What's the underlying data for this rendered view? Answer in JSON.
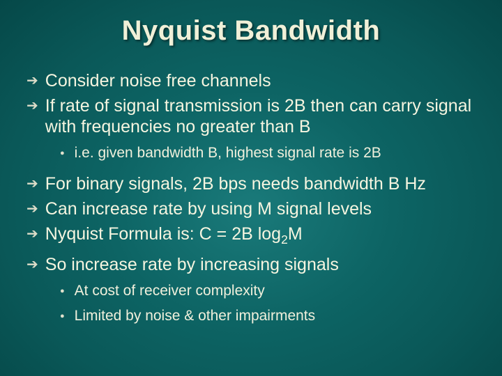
{
  "title": "Nyquist Bandwidth",
  "bullets_a": [
    "Consider noise free channels",
    "If rate of signal transmission is 2B then can carry signal with frequencies no greater than B"
  ],
  "sub_a": [
    "i.e. given bandwidth B, highest signal rate is 2B"
  ],
  "bullets_b": [
    "For binary signals, 2B bps needs bandwidth B Hz",
    "Can increase rate by using M signal levels",
    "Nyquist Formula is: C = 2B log",
    "So increase rate by increasing signals"
  ],
  "formula_sub": "2",
  "formula_after": "M",
  "sub_b": [
    "At cost of receiver complexity",
    "Limited by noise & other impairments"
  ],
  "markers": {
    "l1": "➔",
    "l2": "●"
  },
  "colors": {
    "background_center": "#1a7a7a",
    "background_edge": "#054848",
    "text": "#f5f5e0",
    "title": "#f0f0d8"
  },
  "fontsizes": {
    "title": 40,
    "l1": 25,
    "l2": 21
  }
}
